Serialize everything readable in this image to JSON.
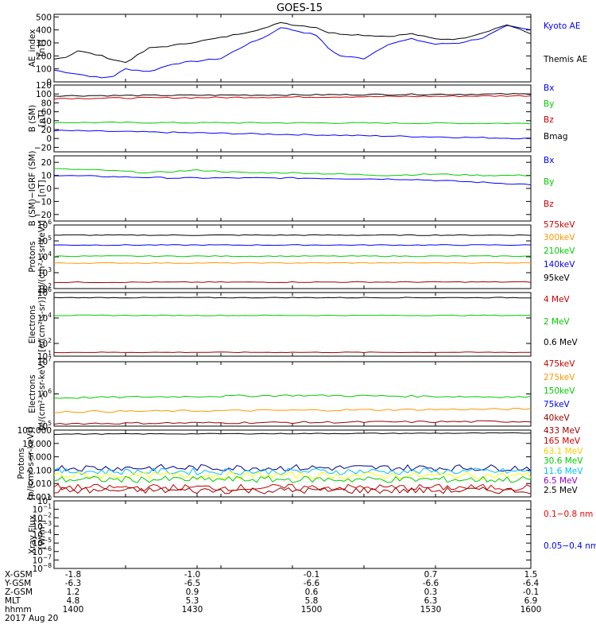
{
  "title": "GOES-15",
  "footer": {
    "row_labels": [
      "X-GSM",
      "Y-GSM",
      "Z-GSM",
      "MLT",
      "hhmm"
    ],
    "date": "2017 Aug 20",
    "columns": [
      [
        "-1.8",
        "-6.3",
        "1.2",
        "4.8",
        "1400"
      ],
      [
        "-1.0",
        "-6.5",
        "0.9",
        "5.3",
        "1430"
      ],
      [
        "-0.1",
        "-6.6",
        "0.6",
        "5.8",
        "1500"
      ],
      [
        "0.7",
        "-6.6",
        "0.3",
        "6.3",
        "1530"
      ],
      [
        "1.5",
        "-6.4",
        "-0.1",
        "6.9",
        "1600"
      ]
    ]
  },
  "chart_data": [
    {
      "type": "line",
      "ylabel": [
        "AE_index",
        "[nT]"
      ],
      "ylim": [
        0,
        520
      ],
      "yscale": "linear",
      "yticks": [
        0,
        100,
        200,
        300,
        400,
        500
      ],
      "yticklabels": [
        "0",
        "100",
        "200",
        "300",
        "400",
        "500"
      ],
      "xlim": [
        1400,
        1600
      ],
      "series": [
        {
          "name": "Kyoto AE",
          "color": "#0000ff",
          "x": [
            1400,
            1410,
            1420,
            1425,
            1430,
            1440,
            1450,
            1460,
            1470,
            1480,
            1490,
            1495,
            1500,
            1510,
            1515,
            1520,
            1530,
            1540,
            1550,
            1560,
            1570,
            1580,
            1590,
            1600
          ],
          "y": [
            90,
            60,
            30,
            45,
            100,
            80,
            140,
            160,
            180,
            280,
            360,
            420,
            400,
            360,
            260,
            200,
            180,
            290,
            330,
            290,
            300,
            340,
            430,
            400
          ]
        },
        {
          "name": "Themis AE",
          "color": "#000000",
          "x": [
            1400,
            1405,
            1410,
            1420,
            1425,
            1430,
            1440,
            1450,
            1460,
            1470,
            1480,
            1490,
            1495,
            1500,
            1510,
            1515,
            1520,
            1530,
            1540,
            1550,
            1560,
            1570,
            1580,
            1590,
            1600
          ],
          "y": [
            180,
            190,
            240,
            200,
            170,
            150,
            260,
            280,
            310,
            340,
            380,
            420,
            460,
            440,
            420,
            380,
            370,
            360,
            350,
            370,
            330,
            330,
            380,
            440,
            370
          ]
        }
      ]
    },
    {
      "type": "line",
      "ylabel": [
        "B (SM)",
        "[nT]"
      ],
      "ylim": [
        -30,
        120
      ],
      "yscale": "linear",
      "yticks": [
        -20,
        0,
        20,
        40,
        60,
        80,
        100,
        120
      ],
      "yticklabels": [
        "−20",
        "0",
        "20",
        "40",
        "60",
        "80",
        "100",
        "120"
      ],
      "xlim": [
        1400,
        1600
      ],
      "series": [
        {
          "name": "Bx",
          "color": "#0000ff",
          "x": [
            1400,
            1600
          ],
          "y": [
            18,
            0
          ]
        },
        {
          "name": "By",
          "color": "#00cc00",
          "x": [
            1400,
            1600
          ],
          "y": [
            36,
            34
          ]
        },
        {
          "name": "Bz",
          "color": "#cc0000",
          "x": [
            1400,
            1600
          ],
          "y": [
            90,
            96
          ]
        },
        {
          "name": "Bmag",
          "color": "#000000",
          "x": [
            1400,
            1600
          ],
          "y": [
            96,
            100
          ]
        }
      ]
    },
    {
      "type": "line",
      "ylabel": [
        "B (SM)−IGRF (SM)",
        "[nT]"
      ],
      "ylim": [
        -25,
        25
      ],
      "yscale": "linear",
      "yticks": [
        -20,
        -10,
        0,
        10,
        20
      ],
      "yticklabels": [
        "−20",
        "−10",
        "0",
        "10",
        "20"
      ],
      "xlim": [
        1400,
        1600
      ],
      "series": [
        {
          "name": "Bx",
          "color": "#0000ff",
          "x": [
            1400,
            1450,
            1500,
            1550,
            1600
          ],
          "y": [
            10,
            8,
            8,
            7,
            3
          ]
        },
        {
          "name": "By",
          "color": "#00cc00",
          "x": [
            1400,
            1420,
            1440,
            1460,
            1480,
            1500,
            1520,
            1540,
            1560,
            1580,
            1600
          ],
          "y": [
            15,
            14,
            12,
            14,
            12,
            12,
            11,
            10,
            11,
            10,
            10
          ]
        },
        {
          "name": "Bz",
          "color": "#cc0000",
          "x": [
            1400,
            1420,
            1440,
            1460,
            1480,
            1500,
            1520,
            1540,
            1560,
            1580,
            1600
          ],
          "y": [
            -16,
            -14,
            -13,
            -13,
            -12,
            -11,
            -11,
            -10,
            -8,
            -7,
            -10
          ]
        }
      ]
    },
    {
      "type": "line",
      "ylabel": [
        "Protons",
        "[p/(cm²-s-sr-keV)]"
      ],
      "yscale": "log",
      "ylim": [
        100,
        1000000
      ],
      "yticks": [
        100,
        1000,
        10000,
        100000,
        1000000
      ],
      "ytick_exponents": [
        "2",
        "3",
        "4",
        "5",
        "6"
      ],
      "xlim": [
        1400,
        1600
      ],
      "series": [
        {
          "name": "575keV",
          "color": "#000000",
          "x": [
            1400,
            1600
          ],
          "y": [
            230000,
            230000
          ]
        },
        {
          "name": "300keV",
          "color": "#0000ff",
          "x": [
            1400,
            1600
          ],
          "y": [
            55000,
            55000
          ]
        },
        {
          "name": "210keV",
          "color": "#00cc00",
          "x": [
            1400,
            1600
          ],
          "y": [
            11000,
            11000
          ]
        },
        {
          "name": "140keV",
          "color": "#ff9900",
          "x": [
            1400,
            1600
          ],
          "y": [
            4000,
            4200
          ]
        },
        {
          "name": "95keV",
          "color": "#990000",
          "x": [
            1400,
            1600
          ],
          "y": [
            250,
            260
          ]
        }
      ]
    },
    {
      "type": "line",
      "ylabel": [
        "Electrons",
        "[e/(cm²-s-sr)]"
      ],
      "yscale": "log",
      "ylim": [
        10,
        1000000
      ],
      "yticks": [
        10,
        100,
        10000,
        1000000
      ],
      "ytick_exponents": [
        "1",
        "2",
        "4",
        "6"
      ],
      "xlim": [
        1400,
        1600
      ],
      "series": [
        {
          "name": "4 MeV",
          "color": "#000000",
          "x": [
            1400,
            1600
          ],
          "y": [
            400000,
            400000
          ]
        },
        {
          "name": "2 MeV",
          "color": "#00cc00",
          "x": [
            1400,
            1600
          ],
          "y": [
            16000,
            16000
          ]
        },
        {
          "name": "0.6 MeV",
          "color": "#990000",
          "x": [
            1400,
            1600
          ],
          "y": [
            20,
            20
          ]
        }
      ]
    },
    {
      "type": "line",
      "ylabel": [
        "Electrons",
        "[e/(cm²-s-sr-keV)]"
      ],
      "yscale": "log",
      "ylim": [
        100000,
        10000000
      ],
      "yticks": [
        100000,
        1000000,
        10000000
      ],
      "ytick_exponents": [
        "5",
        "6",
        "7"
      ],
      "xlim": [
        1400,
        1600
      ],
      "series": [
        {
          "name": "475keV",
          "color": "#000000",
          "x": [
            1400,
            1600
          ],
          "y": [
            0,
            0
          ]
        },
        {
          "name": "275keV",
          "color": "#cc0000",
          "x": [
            1400,
            1600
          ],
          "y": [
            0,
            0
          ]
        },
        {
          "name": "150keV",
          "color": "#00cc00",
          "x": [
            1400,
            1500,
            1600
          ],
          "y": [
            750000,
            900000,
            800000
          ]
        },
        {
          "name": "75keV",
          "color": "#ff9900",
          "x": [
            1400,
            1600
          ],
          "y": [
            280000,
            340000
          ]
        },
        {
          "name": "40keV",
          "color": "#990000",
          "x": [
            1400,
            1600
          ],
          "y": [
            120000,
            140000
          ]
        }
      ]
    },
    {
      "type": "line",
      "ylabel": [
        "Protons",
        "[p/(cm²-s-sr-keV)]"
      ],
      "yscale": "log",
      "ylim": [
        0.001,
        100
      ],
      "yticks": [
        0.001,
        0.01,
        0.1,
        1,
        10,
        100
      ],
      "yticklabels": [
        "0.001",
        "0.010",
        "0.100",
        "1.000",
        "10.000",
        "100.000"
      ],
      "xlim": [
        1400,
        1600
      ],
      "series": [
        {
          "name": "433 MeV",
          "color": "#000000",
          "x": [
            1400,
            1600
          ],
          "y": [
            50,
            60
          ]
        },
        {
          "name": "165 MeV",
          "color": "#00008b",
          "x": [
            1400,
            1600
          ],
          "y": [
            0.15,
            0.15
          ],
          "noisy": true
        },
        {
          "name": "63.1 MeV",
          "color": "#00bfff",
          "x": [
            1400,
            1600
          ],
          "y": [
            0.08,
            0.08
          ],
          "noisy": true
        },
        {
          "name": "30.6 MeV",
          "color": "#ffff00",
          "x": [
            1400,
            1600
          ],
          "y": [
            0.04,
            0.04
          ],
          "noisy": true
        },
        {
          "name": "11.6 MeV",
          "color": "#00cc00",
          "x": [
            1400,
            1600
          ],
          "y": [
            0.02,
            0.02
          ],
          "noisy": true
        },
        {
          "name": "6.5 MeV",
          "color": "#cc0000",
          "x": [
            1400,
            1600
          ],
          "y": [
            0.005,
            0.005
          ],
          "noisy": true
        },
        {
          "name": "2.5 MeV",
          "color": "#990000",
          "x": [
            1400,
            1600
          ],
          "y": [
            0.003,
            0.003
          ],
          "noisy": true
        }
      ]
    },
    {
      "type": "line",
      "ylabel": [
        "Xray Flux",
        "[W/m²]"
      ],
      "yscale": "log",
      "ylim": [
        1e-08,
        1
      ],
      "yticks": [
        1e-08,
        1e-07,
        1e-06,
        1e-05,
        0.0001,
        0.001,
        0.01,
        0.1,
        1
      ],
      "ytick_exponents": [
        "−8",
        "−7",
        "−6",
        "−5",
        "−4",
        "−3",
        "−2",
        "−1",
        "0"
      ],
      "xlim": [
        1400,
        1600
      ],
      "series": [
        {
          "name": "0.1−0.8 nm",
          "color": "#ff0000",
          "x": [],
          "y": []
        },
        {
          "name": "0.05−0.4 nm",
          "color": "#0000ff",
          "x": [],
          "y": []
        }
      ]
    }
  ]
}
